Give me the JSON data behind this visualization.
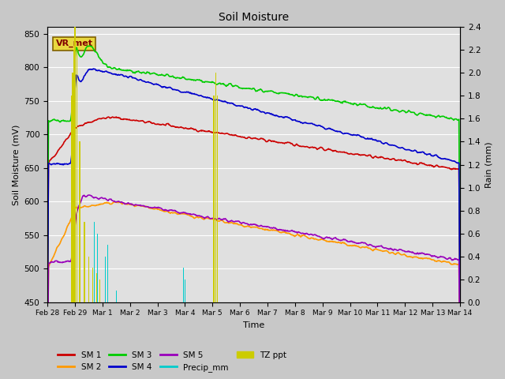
{
  "title": "Soil Moisture",
  "xlabel": "Time",
  "ylabel_left": "Soil Moisture (mV)",
  "ylabel_right": "Rain (mm)",
  "ylim_left": [
    450,
    860
  ],
  "ylim_right": [
    0.0,
    2.4
  ],
  "fig_bg_color": "#c8c8c8",
  "plot_bg_color": "#e0e0e0",
  "annotation_text": "VR_met",
  "annotation_box_facecolor": "#e8d840",
  "annotation_box_edgecolor": "#806000",
  "annotation_text_color": "#800000",
  "colors": {
    "SM1": "#cc0000",
    "SM2": "#ff9900",
    "SM3": "#00cc00",
    "SM4": "#0000cc",
    "SM5": "#9900bb",
    "Precip_mm": "#00cccc",
    "TZ_ppt": "#cccc00"
  },
  "xtick_labels": [
    "Feb 28",
    "Feb 29",
    "Mar 1",
    "Mar 2",
    "Mar 3",
    "Mar 4",
    "Mar 5",
    "Mar 6",
    "Mar 7",
    "Mar 8",
    "Mar 9",
    "Mar 10",
    "Mar 11",
    "Mar 12",
    "Mar 13",
    "Mar 14"
  ],
  "yticks_left": [
    450,
    500,
    550,
    600,
    650,
    700,
    750,
    800,
    850
  ],
  "yticks_right": [
    0.0,
    0.2,
    0.4,
    0.6,
    0.8,
    1.0,
    1.2,
    1.4,
    1.6,
    1.8,
    2.0,
    2.2,
    2.4
  ],
  "grid_color": "#ffffff",
  "n_days": 15,
  "pts_per_day": 48
}
